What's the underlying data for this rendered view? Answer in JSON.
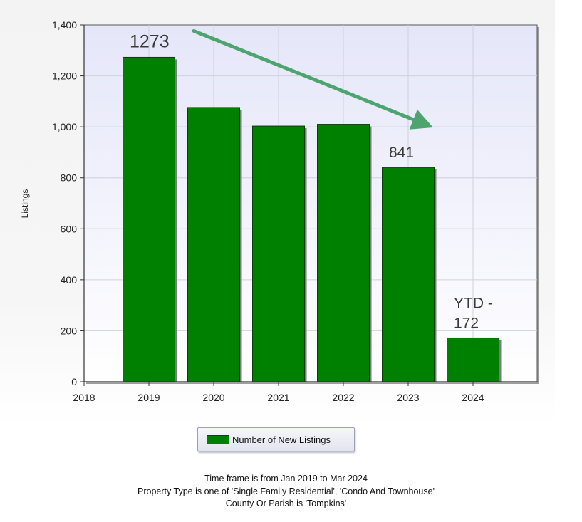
{
  "chart_data": {
    "type": "bar",
    "categories": [
      "2019",
      "2020",
      "2021",
      "2022",
      "2023",
      "2024"
    ],
    "series": [
      {
        "name": "Number of New Listings",
        "values": [
          1273,
          1076,
          1003,
          1010,
          841,
          172
        ],
        "color": "#008000"
      }
    ],
    "x_ticks": [
      "2018",
      "2019",
      "2020",
      "2021",
      "2022",
      "2023",
      "2024"
    ],
    "y_ticks": [
      "0",
      "200",
      "400",
      "600",
      "800",
      "1,000",
      "1,200",
      "1,400"
    ],
    "ylabel": "Listings",
    "ylim": [
      0,
      1400
    ],
    "grid": true,
    "annotations": [
      {
        "year": "2019",
        "text": "1273"
      },
      {
        "year": "2023",
        "text": "841"
      },
      {
        "year": "2024",
        "lines": [
          "YTD -",
          "172"
        ]
      }
    ],
    "trend_arrow": {
      "from": "2019",
      "to": "2023",
      "color": "#4ea46e"
    },
    "legend_position": "bottom-center"
  },
  "legend": {
    "label": "Number of New Listings"
  },
  "footer": {
    "line1": "Time frame is from Jan 2019 to Mar 2024",
    "line2": "Property Type is one of 'Single Family Residential', 'Condo And Townhouse'",
    "line3": "County Or Parish is 'Tompkins'"
  }
}
